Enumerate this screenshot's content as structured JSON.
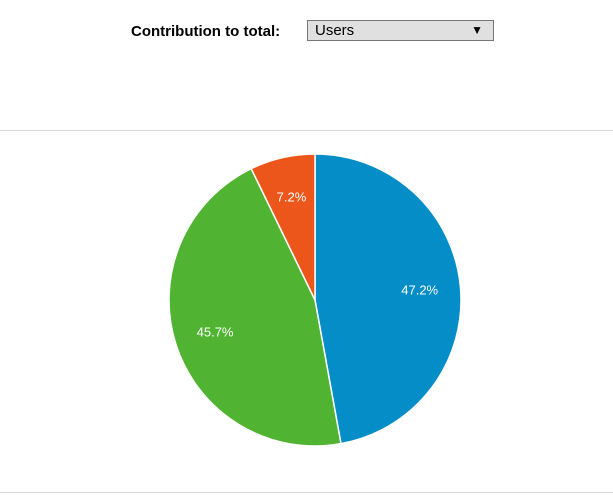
{
  "control": {
    "label": "Contribution to total:",
    "selected": "Users"
  },
  "chart_data": {
    "type": "pie",
    "title": "",
    "slices": [
      {
        "value": 47.2,
        "label": "47.2%",
        "color": "#058dc7"
      },
      {
        "value": 45.7,
        "label": "45.7%",
        "color": "#50b432"
      },
      {
        "value": 7.2,
        "label": "7.2%",
        "color": "#ed561b"
      }
    ]
  }
}
